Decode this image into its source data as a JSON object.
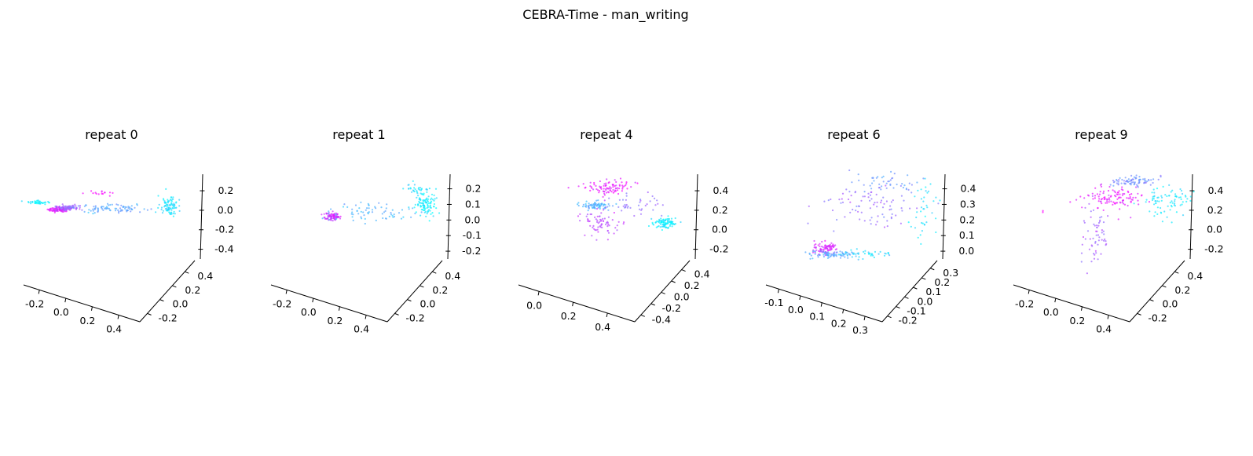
{
  "figure": {
    "title": "CEBRA-Time - man_writing"
  },
  "colormap": {
    "name": "cool",
    "start": "#00ffff",
    "end": "#ff00ff"
  },
  "chart_data": [
    {
      "type": "scatter3d",
      "title": "repeat 0",
      "grid": false,
      "legend": "none",
      "x_ticks": [
        "-0.2",
        "0.0",
        "0.2",
        "0.4"
      ],
      "y_ticks": [
        "-0.2",
        "0.0",
        "0.2",
        "0.4"
      ],
      "z_ticks": [
        "-0.4",
        "-0.2",
        "0.0",
        "0.2"
      ],
      "clusters": [
        {
          "cx": 0.14,
          "cy": 0.4,
          "sx": 0.03,
          "sy": 0.012,
          "n": 90,
          "t": 0.88
        },
        {
          "cx": 0.2,
          "cy": 0.38,
          "sx": 0.035,
          "sy": 0.014,
          "n": 70,
          "t": 0.62
        },
        {
          "cx": 0.04,
          "cy": 0.33,
          "sx": 0.03,
          "sy": 0.008,
          "n": 40,
          "t": 0.05
        },
        {
          "cx": 0.4,
          "cy": 0.39,
          "sx": 0.12,
          "sy": 0.022,
          "n": 90,
          "t": 0.35
        },
        {
          "cx": 0.75,
          "cy": 0.38,
          "sx": 0.025,
          "sy": 0.045,
          "n": 90,
          "t": 0.12
        },
        {
          "cx": 0.36,
          "cy": 0.24,
          "sx": 0.04,
          "sy": 0.018,
          "n": 15,
          "t": 0.95
        }
      ]
    },
    {
      "type": "scatter3d",
      "title": "repeat 1",
      "grid": false,
      "legend": "none",
      "x_ticks": [
        "-0.2",
        "0.0",
        "0.2",
        "0.4"
      ],
      "y_ticks": [
        "-0.2",
        "0.0",
        "0.2",
        "0.4"
      ],
      "z_ticks": [
        "-0.2",
        "-0.1",
        "0.0",
        "0.1",
        "0.2"
      ],
      "clusters": [
        {
          "cx": 0.29,
          "cy": 0.47,
          "sx": 0.025,
          "sy": 0.018,
          "n": 90,
          "t": 0.8
        },
        {
          "cx": 0.5,
          "cy": 0.42,
          "sx": 0.12,
          "sy": 0.05,
          "n": 70,
          "t": 0.28
        },
        {
          "cx": 0.8,
          "cy": 0.35,
          "sx": 0.03,
          "sy": 0.07,
          "n": 110,
          "t": 0.06
        },
        {
          "cx": 0.75,
          "cy": 0.2,
          "sx": 0.035,
          "sy": 0.025,
          "n": 25,
          "t": 0.12
        }
      ]
    },
    {
      "type": "scatter3d",
      "title": "repeat 4",
      "grid": false,
      "legend": "none",
      "x_ticks": [
        "0.0",
        "0.2",
        "0.4"
      ],
      "y_ticks": [
        "-0.4",
        "-0.2",
        "0.0",
        "0.2",
        "0.4"
      ],
      "z_ticks": [
        "-0.2",
        "0.0",
        "0.2",
        "0.4"
      ],
      "clusters": [
        {
          "cx": 0.45,
          "cy": 0.18,
          "sx": 0.06,
          "sy": 0.035,
          "n": 90,
          "t": 0.92
        },
        {
          "cx": 0.38,
          "cy": 0.36,
          "sx": 0.04,
          "sy": 0.02,
          "n": 80,
          "t": 0.3
        },
        {
          "cx": 0.4,
          "cy": 0.52,
          "sx": 0.05,
          "sy": 0.06,
          "n": 70,
          "t": 0.72
        },
        {
          "cx": 0.76,
          "cy": 0.53,
          "sx": 0.03,
          "sy": 0.025,
          "n": 100,
          "t": 0.06
        },
        {
          "cx": 0.58,
          "cy": 0.36,
          "sx": 0.08,
          "sy": 0.05,
          "n": 40,
          "t": 0.55
        }
      ]
    },
    {
      "type": "scatter3d",
      "title": "repeat 6",
      "grid": false,
      "legend": "none",
      "x_ticks": [
        "-0.1",
        "0.0",
        "0.1",
        "0.2",
        "0.3"
      ],
      "y_ticks": [
        "-0.2",
        "-0.1",
        "0.0",
        "0.1",
        "0.2",
        "0.3"
      ],
      "z_ticks": [
        "0.0",
        "0.1",
        "0.2",
        "0.3",
        "0.4"
      ],
      "clusters": [
        {
          "cx": 0.28,
          "cy": 0.78,
          "sx": 0.04,
          "sy": 0.03,
          "n": 80,
          "t": 0.85
        },
        {
          "cx": 0.32,
          "cy": 0.84,
          "sx": 0.06,
          "sy": 0.02,
          "n": 80,
          "t": 0.35
        },
        {
          "cx": 0.5,
          "cy": 0.84,
          "sx": 0.08,
          "sy": 0.02,
          "n": 40,
          "t": 0.15
        },
        {
          "cx": 0.52,
          "cy": 0.35,
          "sx": 0.14,
          "sy": 0.12,
          "n": 90,
          "t": 0.58
        },
        {
          "cx": 0.62,
          "cy": 0.12,
          "sx": 0.08,
          "sy": 0.04,
          "n": 40,
          "t": 0.4
        },
        {
          "cx": 0.82,
          "cy": 0.4,
          "sx": 0.05,
          "sy": 0.12,
          "n": 40,
          "t": 0.1
        }
      ]
    },
    {
      "type": "scatter3d",
      "title": "repeat 9",
      "grid": false,
      "legend": "none",
      "x_ticks": [
        "-0.2",
        "0.0",
        "0.2",
        "0.4"
      ],
      "y_ticks": [
        "-0.2",
        "0.0",
        "0.2",
        "0.4"
      ],
      "z_ticks": [
        "-0.2",
        "0.0",
        "0.2",
        "0.4"
      ],
      "clusters": [
        {
          "cx": 0.5,
          "cy": 0.28,
          "sx": 0.08,
          "sy": 0.06,
          "n": 110,
          "t": 0.9
        },
        {
          "cx": 0.62,
          "cy": 0.12,
          "sx": 0.06,
          "sy": 0.025,
          "n": 80,
          "t": 0.45
        },
        {
          "cx": 0.8,
          "cy": 0.32,
          "sx": 0.06,
          "sy": 0.08,
          "n": 80,
          "t": 0.1
        },
        {
          "cx": 0.4,
          "cy": 0.68,
          "sx": 0.04,
          "sy": 0.14,
          "n": 60,
          "t": 0.62
        },
        {
          "cx": 0.12,
          "cy": 0.42,
          "sx": 0.01,
          "sy": 0.01,
          "n": 2,
          "t": 0.95
        }
      ]
    }
  ]
}
